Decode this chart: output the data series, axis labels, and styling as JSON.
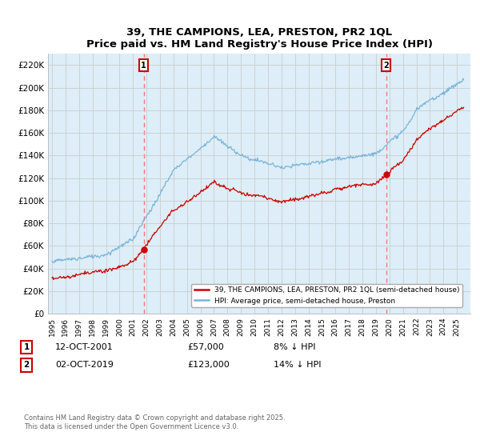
{
  "title": "39, THE CAMPIONS, LEA, PRESTON, PR2 1QL",
  "subtitle": "Price paid vs. HM Land Registry's House Price Index (HPI)",
  "legend_line1": "39, THE CAMPIONS, LEA, PRESTON, PR2 1QL (semi-detached house)",
  "legend_line2": "HPI: Average price, semi-detached house, Preston",
  "footnote": "Contains HM Land Registry data © Crown copyright and database right 2025.\nThis data is licensed under the Open Government Licence v3.0.",
  "annotation1_label": "1",
  "annotation1_date": "12-OCT-2001",
  "annotation1_price": "£57,000",
  "annotation1_hpi": "8% ↓ HPI",
  "annotation2_label": "2",
  "annotation2_date": "02-OCT-2019",
  "annotation2_price": "£123,000",
  "annotation2_hpi": "14% ↓ HPI",
  "sale1_year": 2001.79,
  "sale1_price": 57000,
  "sale2_year": 2019.75,
  "sale2_price": 123000,
  "hpi_color": "#7ab4d8",
  "hpi_fill_color": "#ddeef8",
  "sale_color": "#CC0000",
  "vline_color": "#FF7777",
  "background_color": "#FFFFFF",
  "grid_color": "#CCCCCC",
  "ylim": [
    0,
    230000
  ],
  "ytick_step": 20000,
  "xlim_left": 1994.7,
  "xlim_right": 2026.0
}
